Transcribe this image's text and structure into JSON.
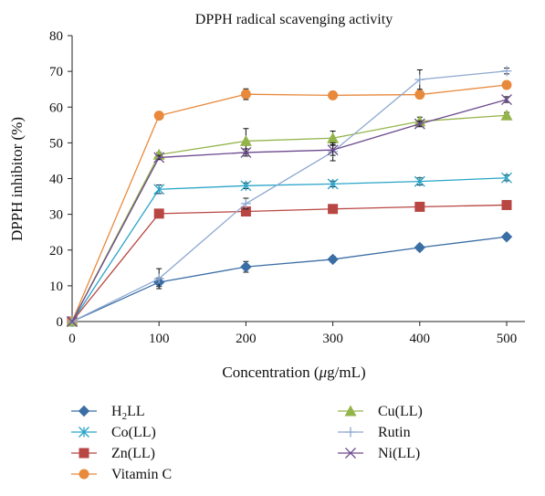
{
  "chart_data": {
    "type": "line",
    "title": "DPPH radical scavenging activity",
    "xlabel_prefix": "Concentration (",
    "xlabel_mu": "μ",
    "xlabel_suffix": "g/mL)",
    "ylabel": "DPPH inhibitor (%)",
    "x": [
      0,
      100,
      200,
      300,
      400,
      500
    ],
    "xlim": [
      0,
      500
    ],
    "ylim": [
      0,
      80
    ],
    "yticks": [
      0,
      10,
      20,
      30,
      40,
      50,
      60,
      70,
      80
    ],
    "xticks": [
      0,
      100,
      200,
      300,
      400,
      500
    ],
    "grid": false,
    "legend_position": "bottom",
    "series": [
      {
        "name": "H2LL",
        "legend_main": "H",
        "legend_sub": "2",
        "legend_rest": "LL",
        "color": "#3b6ea5",
        "marker": "diamond",
        "values": [
          0,
          11,
          15.3,
          17.4,
          20.7,
          23.7
        ],
        "errors": [
          0,
          1.2,
          1.5,
          0.8,
          0.8,
          0.8
        ]
      },
      {
        "name": "Co(LL)",
        "color": "#2aa4c8",
        "marker": "asterisk",
        "values": [
          0,
          37,
          38,
          38.5,
          39.2,
          40.2
        ],
        "errors": [
          0,
          1.2,
          0.8,
          0.8,
          1.0,
          0.8
        ]
      },
      {
        "name": "Zn(LL)",
        "color": "#b84643",
        "marker": "square",
        "values": [
          0,
          30.2,
          30.8,
          31.5,
          32.1,
          32.6
        ],
        "errors": [
          0,
          0.6,
          0.6,
          0.6,
          0.6,
          0.6
        ]
      },
      {
        "name": "Vitamin C",
        "color": "#e8893c",
        "marker": "circle",
        "values": [
          0,
          57.6,
          63.6,
          63.3,
          63.5,
          66.2
        ],
        "errors": [
          0,
          0.5,
          1.5,
          0.6,
          0.8,
          0.6
        ]
      },
      {
        "name": "Cu(LL)",
        "color": "#93b44a",
        "marker": "triangle",
        "values": [
          0,
          46.7,
          50.5,
          51.3,
          56.0,
          57.7
        ],
        "errors": [
          0,
          0.6,
          3.5,
          2.0,
          1.2,
          0.8
        ]
      },
      {
        "name": "Rutin",
        "color": "#8ea8cf",
        "marker": "plus",
        "values": [
          0,
          12,
          33,
          47.5,
          67.7,
          70.1
        ],
        "errors": [
          0,
          2.8,
          1.5,
          2.5,
          2.7,
          0.8
        ]
      },
      {
        "name": "Ni(LL)",
        "color": "#6d4a8e",
        "marker": "x",
        "values": [
          0,
          45.9,
          47.3,
          48,
          55.3,
          62.1
        ],
        "errors": [
          0,
          0.6,
          1.0,
          1.5,
          0.8,
          0.8
        ]
      }
    ]
  }
}
